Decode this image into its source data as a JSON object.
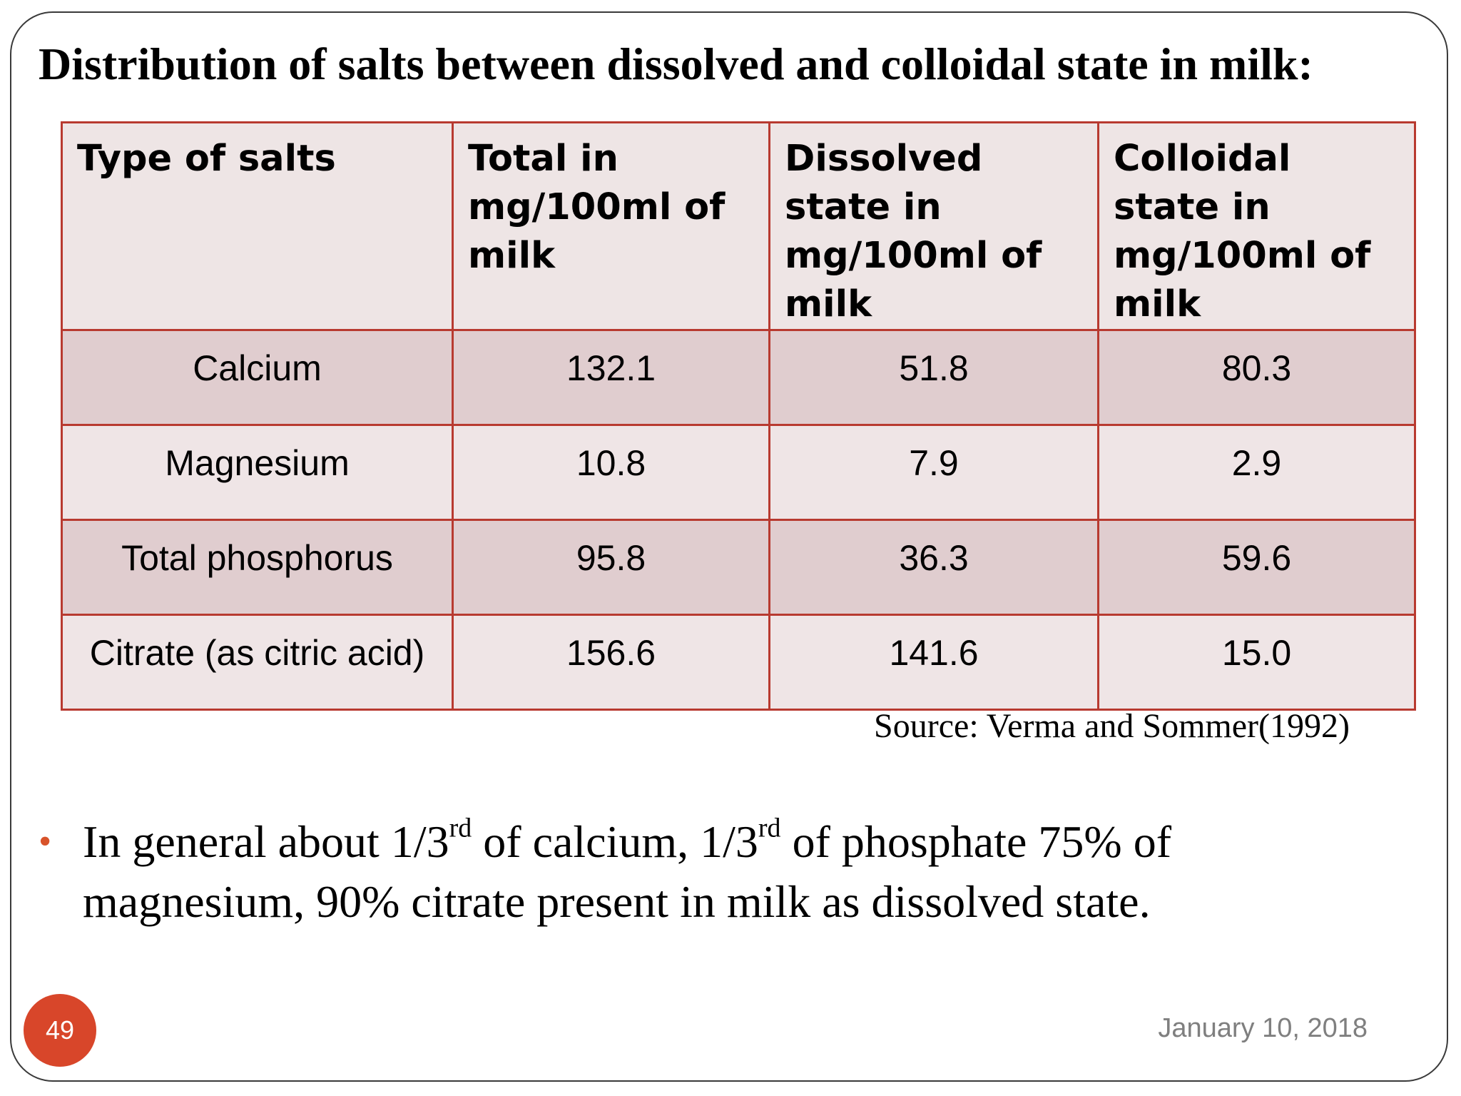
{
  "slide": {
    "title": "Distribution of salts between dissolved and colloidal state in milk:",
    "table": {
      "headers": [
        "Type of salts",
        "Total in mg/100ml of milk",
        "Dissolved state in mg/100ml of milk",
        "Colloidal state in mg/100ml of milk"
      ],
      "rows": [
        [
          "Calcium",
          "132.1",
          "51.8",
          "80.3"
        ],
        [
          "Magnesium",
          "10.8",
          "7.9",
          "2.9"
        ],
        [
          "Total phosphorus",
          "95.8",
          "36.3",
          "59.6"
        ],
        [
          "Citrate (as citric acid)",
          "156.6",
          "141.6",
          "15.0"
        ]
      ]
    },
    "source": "Source: Verma and Sommer(1992)",
    "bullet": {
      "symbol": "•",
      "part1": "In general about 1/3",
      "sup1": "rd",
      "part2": " of calcium, 1/3",
      "sup2": "rd",
      "part3": " of phosphate 75% of magnesium, 90% citrate present in milk as dissolved state."
    },
    "page_number": "49",
    "date": "January 10, 2018"
  },
  "colors": {
    "table_border": "#b83a30",
    "header_bg": "#eee5e5",
    "row_odd_bg": "#e0cdcf",
    "row_even_bg": "#efe5e6",
    "accent": "#d8462a",
    "date_text": "#7f7f7f"
  }
}
